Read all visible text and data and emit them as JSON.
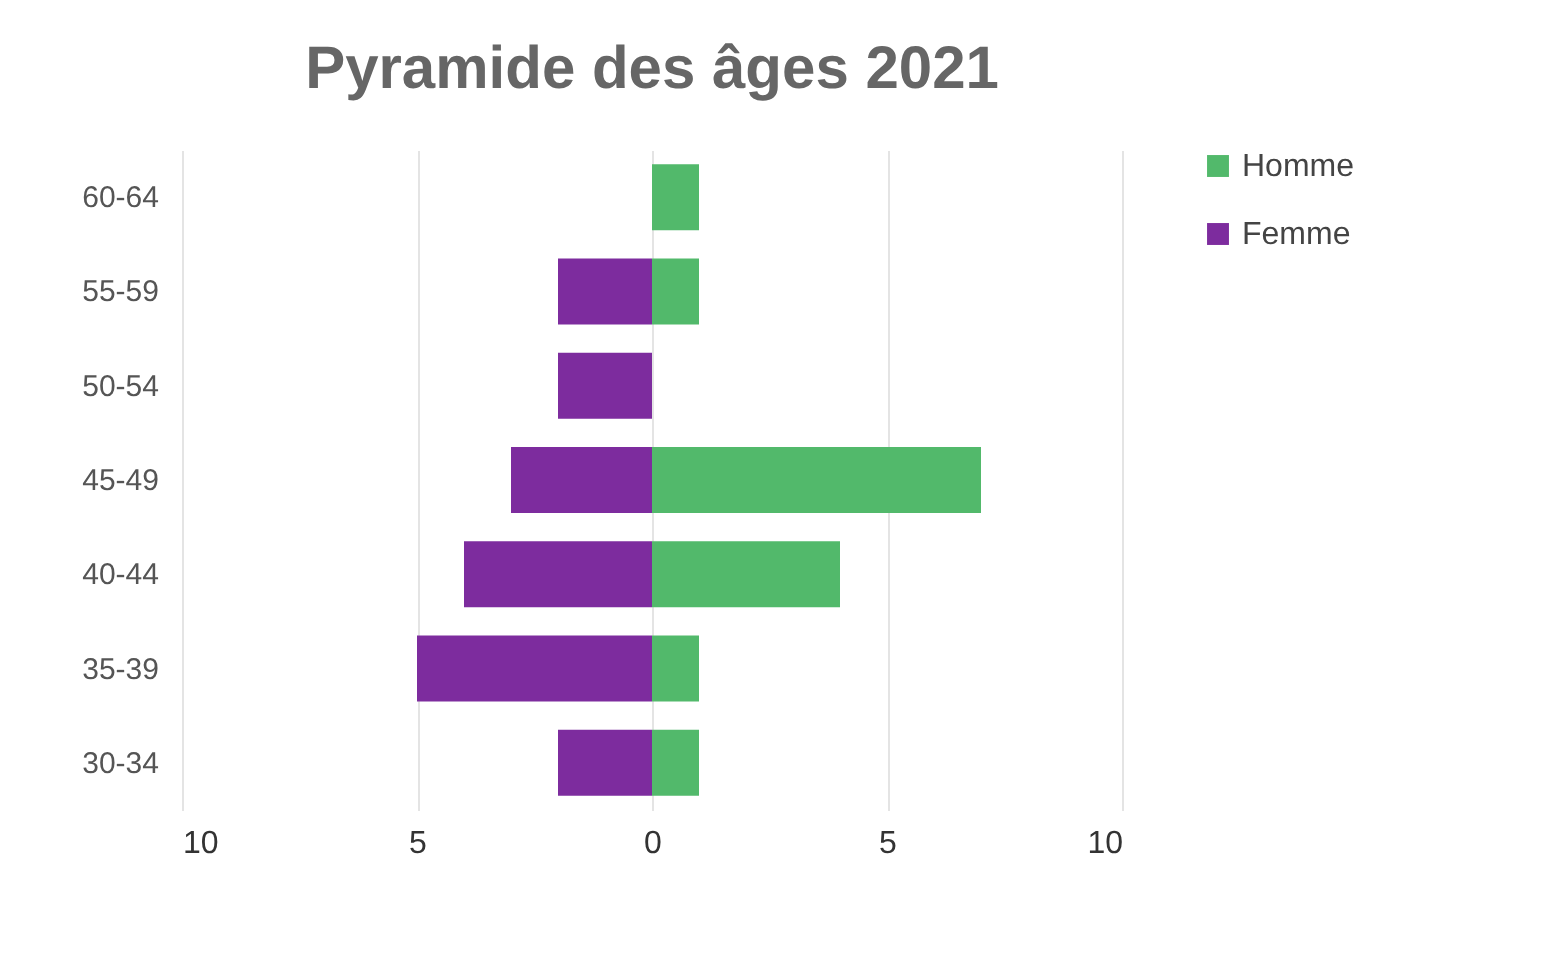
{
  "chart_data": {
    "type": "bar",
    "title": "Pyramide des âges 2021",
    "orientation": "horizontal",
    "stacked": true,
    "categories": [
      "60-64",
      "55-59",
      "50-54",
      "45-49",
      "40-44",
      "35-39",
      "30-34"
    ],
    "series": [
      {
        "name": "Homme",
        "color": "#52b96b",
        "values": [
          1,
          1,
          0,
          7,
          4,
          1,
          1
        ]
      },
      {
        "name": "Femme",
        "color": "#7d2c9e",
        "values": [
          0,
          -2,
          -2,
          -3,
          -4,
          -5,
          -2
        ]
      }
    ],
    "xlim": [
      -10,
      10
    ],
    "xticks": [
      {
        "value": -10,
        "label": "10"
      },
      {
        "value": -5,
        "label": "5"
      },
      0,
      5,
      10
    ],
    "grid": "x",
    "legend": "right"
  }
}
